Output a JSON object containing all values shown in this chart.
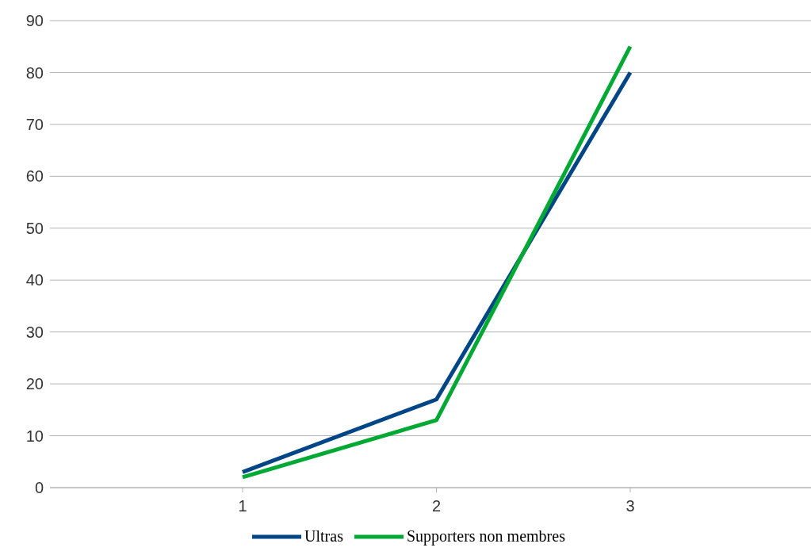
{
  "chart_data": {
    "type": "line",
    "categories": [
      "1",
      "2",
      "3"
    ],
    "series": [
      {
        "name": "Ultras",
        "color": "#004586",
        "values": [
          3,
          17,
          80
        ]
      },
      {
        "name": "Supporters non membres",
        "color": "#00a933",
        "values": [
          2,
          13,
          85
        ]
      }
    ],
    "ylim": [
      0,
      90
    ],
    "yticks": [
      0,
      10,
      20,
      30,
      40,
      50,
      60,
      70,
      80,
      90
    ],
    "grid": "y",
    "legend": "bottom",
    "marker": "none",
    "line_style": "solid"
  }
}
